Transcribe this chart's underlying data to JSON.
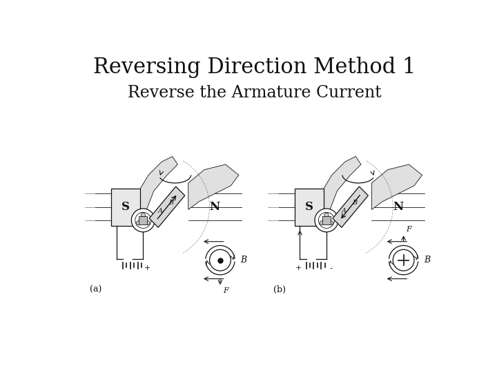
{
  "title": "Reversing Direction Method 1",
  "subtitle": "Reverse the Armature Current",
  "title_fontsize": 22,
  "subtitle_fontsize": 17,
  "bg_color": "#ffffff",
  "text_color": "#111111",
  "label_a": "(a)",
  "label_b": "(b)",
  "dark": "#111111",
  "light_gray": "#cccccc",
  "mid_gray": "#aaaaaa"
}
